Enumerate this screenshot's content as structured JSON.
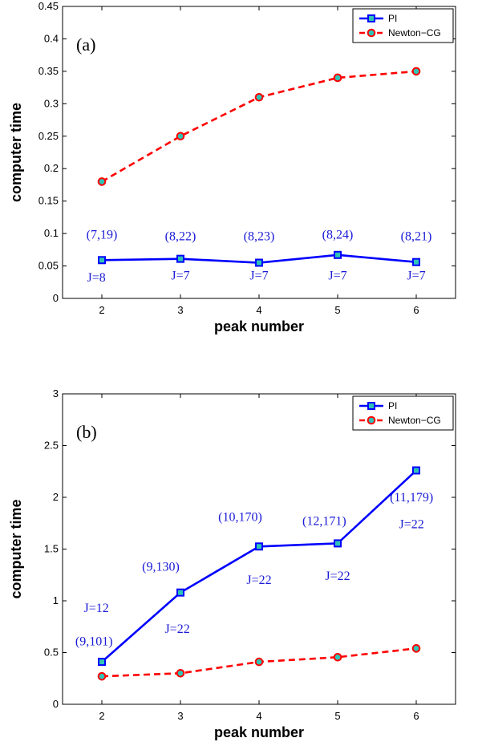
{
  "chart_data": [
    {
      "type": "line",
      "panel_label": "(a)",
      "xlabel": "peak number",
      "ylabel": "computer time",
      "x": [
        2,
        3,
        4,
        5,
        6
      ],
      "xlim": [
        1.5,
        6.5
      ],
      "ylim": [
        0,
        0.45
      ],
      "xticks": [
        "2",
        "3",
        "4",
        "5",
        "6"
      ],
      "yticks": [
        "0",
        "0.05",
        "0.1",
        "0.15",
        "0.2",
        "0.25",
        "0.3",
        "0.35",
        "0.4",
        "0.45"
      ],
      "ytick_values": [
        0,
        0.05,
        0.1,
        0.15,
        0.2,
        0.25,
        0.3,
        0.35,
        0.4,
        0.45
      ],
      "legend_position": "top-right",
      "series": [
        {
          "name": "PI",
          "values": [
            0.059,
            0.061,
            0.055,
            0.067,
            0.056
          ],
          "color": "#0000ff",
          "marker": "square"
        },
        {
          "name": "Newton−CG",
          "values": [
            0.18,
            0.25,
            0.31,
            0.34,
            0.35
          ],
          "color": "#ff0000",
          "marker": "circle"
        }
      ],
      "annotations": [
        {
          "text": "(7,19)",
          "x": 2.0,
          "y": 0.098
        },
        {
          "text": "(8,22)",
          "x": 3.0,
          "y": 0.096
        },
        {
          "text": "(8,23)",
          "x": 4.0,
          "y": 0.096
        },
        {
          "text": "(8,24)",
          "x": 5.0,
          "y": 0.098
        },
        {
          "text": "(8,21)",
          "x": 6.0,
          "y": 0.096
        },
        {
          "text": "J=8",
          "x": 1.93,
          "y": 0.032
        },
        {
          "text": "J=7",
          "x": 3.0,
          "y": 0.035
        },
        {
          "text": "J=7",
          "x": 4.0,
          "y": 0.035
        },
        {
          "text": "J=7",
          "x": 5.0,
          "y": 0.035
        },
        {
          "text": "J=7",
          "x": 6.0,
          "y": 0.035
        }
      ]
    },
    {
      "type": "line",
      "panel_label": "(b)",
      "xlabel": "peak number",
      "ylabel": "computer time",
      "x": [
        2,
        3,
        4,
        5,
        6
      ],
      "xlim": [
        1.5,
        6.5
      ],
      "ylim": [
        0,
        3
      ],
      "xticks": [
        "2",
        "3",
        "4",
        "5",
        "6"
      ],
      "yticks": [
        "0",
        "0.5",
        "1",
        "1.5",
        "2",
        "2.5",
        "3"
      ],
      "ytick_values": [
        0,
        0.5,
        1,
        1.5,
        2,
        2.5,
        3
      ],
      "legend_position": "top-right",
      "series": [
        {
          "name": "PI",
          "values": [
            0.41,
            1.08,
            1.525,
            1.555,
            2.26
          ],
          "color": "#0000ff",
          "marker": "square"
        },
        {
          "name": "Newton−CG",
          "values": [
            0.27,
            0.3,
            0.41,
            0.455,
            0.54
          ],
          "color": "#ff0000",
          "marker": "circle"
        }
      ],
      "annotations": [
        {
          "text": "J=12",
          "x": 1.93,
          "y": 0.93
        },
        {
          "text": "(9,101)",
          "x": 1.9,
          "y": 0.61
        },
        {
          "text": "(9,130)",
          "x": 2.75,
          "y": 1.33
        },
        {
          "text": "J=22",
          "x": 2.96,
          "y": 0.73
        },
        {
          "text": "(10,170)",
          "x": 3.76,
          "y": 1.81
        },
        {
          "text": "J=22",
          "x": 4.0,
          "y": 1.2
        },
        {
          "text": "(12,171)",
          "x": 4.83,
          "y": 1.77
        },
        {
          "text": "J=22",
          "x": 5.0,
          "y": 1.24
        },
        {
          "text": "(11,179)",
          "x": 5.94,
          "y": 2.0
        },
        {
          "text": "J=22",
          "x": 5.94,
          "y": 1.74
        }
      ]
    }
  ]
}
